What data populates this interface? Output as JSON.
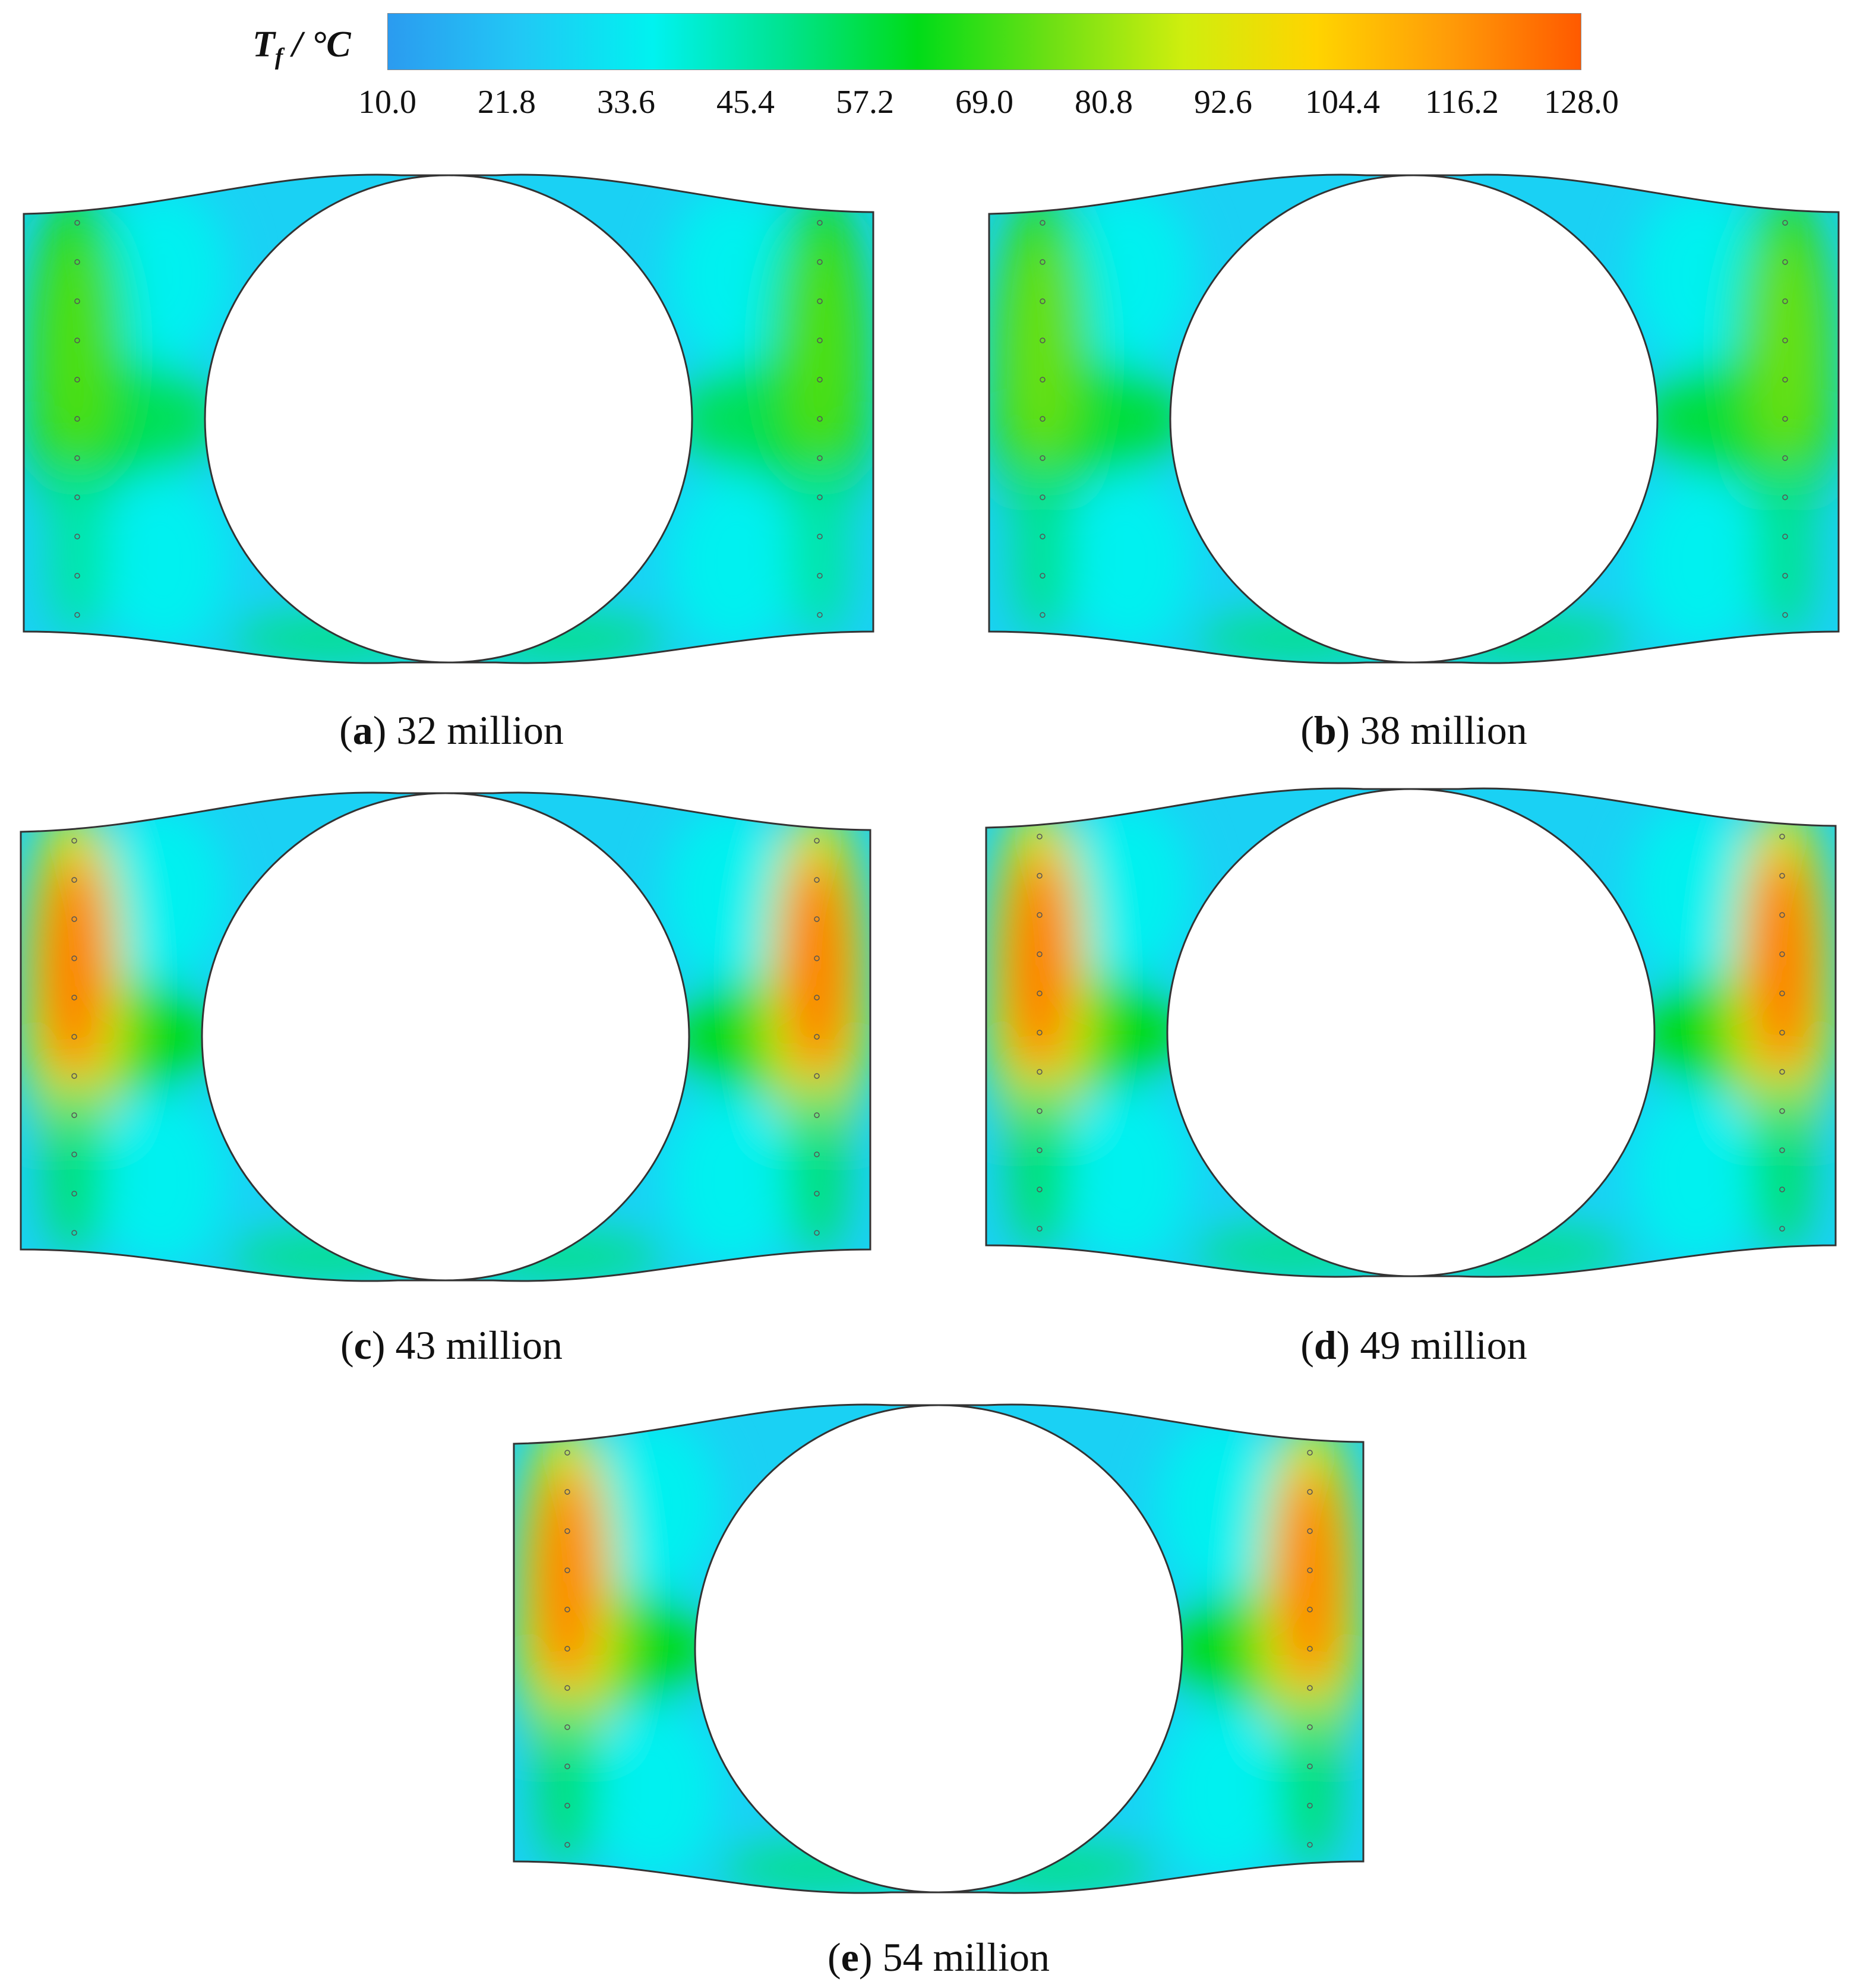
{
  "legend": {
    "symbol": "T",
    "subscript": "f",
    "unit": " / °C",
    "ticks": [
      "10.0",
      "21.8",
      "33.6",
      "45.4",
      "57.2",
      "69.0",
      "80.8",
      "92.6",
      "104.4",
      "116.2",
      "128.0"
    ],
    "range": [
      10.0,
      128.0
    ],
    "colors": [
      "#2b9bf0",
      "#21c8f5",
      "#00f2f0",
      "#00e38f",
      "#00dc18",
      "#6ee014",
      "#cfee0e",
      "#ffd400",
      "#ff9c08",
      "#ff5a00"
    ]
  },
  "panels": [
    {
      "letter": "a",
      "label": "32 million",
      "peak_temp": 72,
      "side_temp": 55
    },
    {
      "letter": "b",
      "label": "38 million",
      "peak_temp": 75,
      "side_temp": 58
    },
    {
      "letter": "c",
      "label": "43 million",
      "peak_temp": 122,
      "side_temp": 62
    },
    {
      "letter": "d",
      "label": "49 million",
      "peak_temp": 122,
      "side_temp": 63
    },
    {
      "letter": "e",
      "label": "54 million",
      "peak_temp": 120,
      "side_temp": 62
    }
  ]
}
